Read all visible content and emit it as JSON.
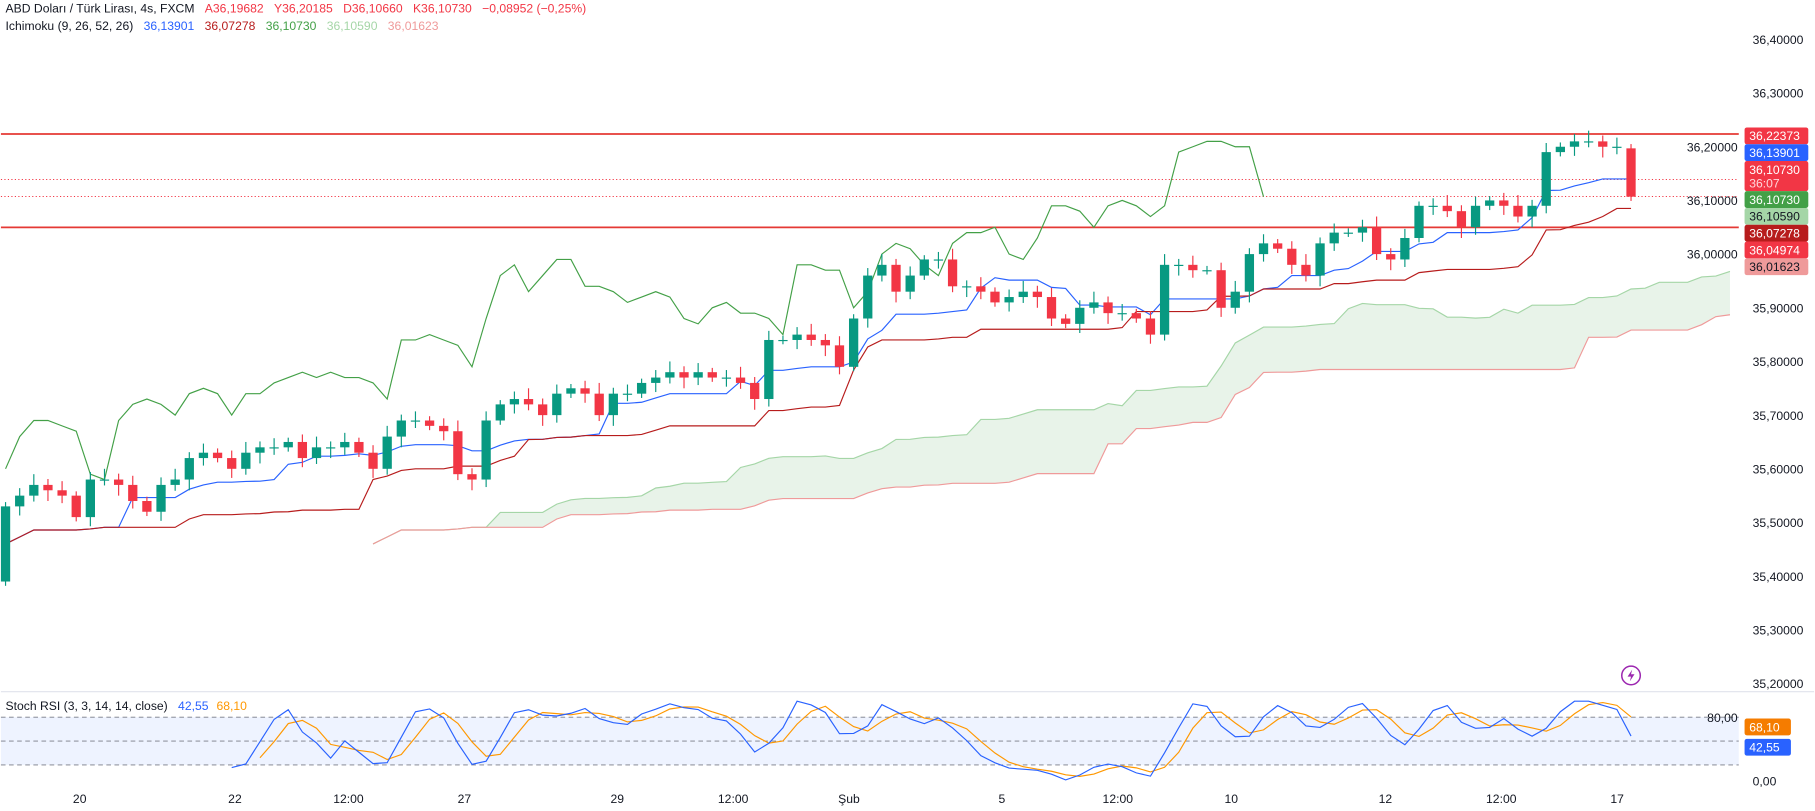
{
  "header": {
    "symbol": "ABD Doları / Türk Lirası, 4s, FXCM",
    "open": "A36,19682",
    "high": "Y36,20185",
    "low": "D36,10660",
    "close": "K36,10730",
    "change": "−0,08952 (−0,25%)",
    "ichimoku_label": "Ichimoku (9, 26, 52, 26)",
    "ichimoku_values": [
      "36,13901",
      "36,07278",
      "36,10730",
      "36,10590",
      "36,01623"
    ],
    "stoch_label": "Stoch RSI (3, 3, 14, 14, close)",
    "stoch_k": "42,55",
    "stoch_d": "68,10"
  },
  "price_tags": [
    {
      "text": "36,22373",
      "bg": "#f23645",
      "fg": "#ffffff"
    },
    {
      "text": "36,13901",
      "bg": "#2962ff",
      "fg": "#ffffff"
    },
    {
      "text": "36,10730",
      "sub": "36:07",
      "bg": "#f23645",
      "fg": "#ffffff"
    },
    {
      "text": "36,10730",
      "bg": "#43a047",
      "fg": "#ffffff"
    },
    {
      "text": "36,10590",
      "bg": "#a5d6a7",
      "fg": "#131722"
    },
    {
      "text": "36,07278",
      "bg": "#b71c1c",
      "fg": "#ffffff"
    },
    {
      "text": "36,04974",
      "bg": "#f23645",
      "fg": "#ffffff"
    },
    {
      "text": "36,01623",
      "bg": "#ef9a9a",
      "fg": "#131722"
    }
  ],
  "stoch_tags": [
    {
      "text": "68,10",
      "bg": "#f57c00"
    },
    {
      "text": "42,55",
      "bg": "#2962ff"
    }
  ],
  "colors": {
    "up": "#089981",
    "down": "#f23645",
    "tenkan": "#2962ff",
    "kijun": "#b71c1c",
    "chikou": "#43a047",
    "spanA": "#a5d6a7",
    "spanB": "#ef9a9a",
    "k": "#2962ff",
    "d": "#ff9800"
  },
  "chart_data": {
    "type": "candlestick",
    "title": "ABD Doları / Türk Lirası, 4s, FXCM",
    "first_open": 35.39,
    "last_open": 36.197,
    "close": [
      35.53,
      35.55,
      35.57,
      35.56,
      35.55,
      35.51,
      35.58,
      35.58,
      35.57,
      35.54,
      35.52,
      35.57,
      35.58,
      35.62,
      35.63,
      35.62,
      35.6,
      35.63,
      35.64,
      35.64,
      35.65,
      35.62,
      35.64,
      35.64,
      35.65,
      35.63,
      35.6,
      35.66,
      35.69,
      35.69,
      35.68,
      35.67,
      35.59,
      35.58,
      35.69,
      35.72,
      35.73,
      35.72,
      35.7,
      35.74,
      35.75,
      35.74,
      35.7,
      35.74,
      35.74,
      35.76,
      35.77,
      35.78,
      35.77,
      35.78,
      35.77,
      35.77,
      35.76,
      35.73,
      35.84,
      35.84,
      35.85,
      35.84,
      35.83,
      35.79,
      35.88,
      35.96,
      35.98,
      35.93,
      35.96,
      35.99,
      35.99,
      35.94,
      35.94,
      35.93,
      35.91,
      35.92,
      35.93,
      35.92,
      35.88,
      35.87,
      35.9,
      35.91,
      35.89,
      35.89,
      35.88,
      35.85,
      35.98,
      35.98,
      35.97,
      35.97,
      35.9,
      35.93,
      36.0,
      36.02,
      36.01,
      35.98,
      35.96,
      36.02,
      36.04,
      36.04,
      36.05,
      36.0,
      35.99,
      36.03,
      36.09,
      36.09,
      36.08,
      36.05,
      36.09,
      36.1,
      36.09,
      36.07,
      36.09,
      36.19,
      36.2,
      36.21,
      36.21,
      36.2,
      36.2,
      36.107
    ],
    "horizontal_lines": [
      36.22373,
      36.04974
    ],
    "dotted_lines": [
      36.13901,
      36.1073
    ],
    "ylim": [
      35.17,
      36.45
    ],
    "y_tick_labels": [
      "36,40000",
      "36,30000",
      "36,20000",
      "36,10000",
      "36,00000",
      "35,90000",
      "35,80000",
      "35,70000",
      "35,60000",
      "35,50000",
      "35,40000",
      "35,30000",
      "35,20000"
    ],
    "x_tick_labels": [
      "20",
      "22",
      "12:00",
      "27",
      "29",
      "12:00",
      "Şub",
      "5",
      "12:00",
      "10",
      "12",
      "12:00",
      "17"
    ],
    "stoch_tick_labels": [
      "80,00",
      "0,00"
    ],
    "stoch_levels": [
      80,
      50,
      20
    ]
  }
}
